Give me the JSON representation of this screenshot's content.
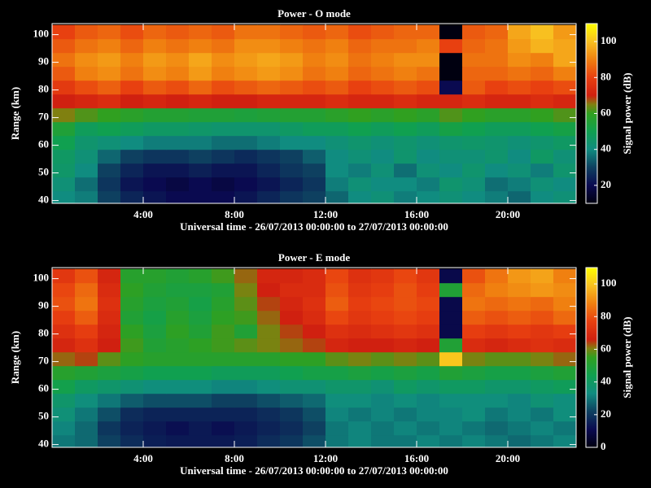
{
  "chart_data": [
    {
      "type": "heatmap",
      "title": "Power - O mode",
      "xlabel": "Universal time - 26/07/2013 00:00:00 to 27/07/2013 00:00:00",
      "ylabel": "Range (km)",
      "colorbar_label": "Signal power (dB)",
      "x": [
        0.5,
        1.5,
        2.5,
        3.5,
        4.5,
        5.5,
        6.5,
        7.5,
        8.5,
        9.5,
        10.5,
        11.5,
        12.5,
        13.5,
        14.5,
        15.5,
        16.5,
        17.5,
        18.5,
        19.5,
        20.5,
        21.5,
        22.5
      ],
      "y": [
        41,
        46,
        51,
        56,
        61,
        66,
        71,
        76,
        81,
        86,
        91,
        96,
        101
      ],
      "z": [
        [
          40,
          38,
          30,
          25,
          22,
          20,
          20,
          20,
          22,
          25,
          28,
          30,
          35,
          40,
          42,
          38,
          40,
          42,
          40,
          38,
          35,
          40,
          42
        ],
        [
          42,
          36,
          28,
          22,
          20,
          18,
          20,
          18,
          20,
          22,
          25,
          28,
          38,
          42,
          40,
          40,
          38,
          44,
          42,
          36,
          38,
          42,
          40
        ],
        [
          45,
          40,
          30,
          25,
          22,
          22,
          24,
          22,
          22,
          25,
          28,
          30,
          40,
          38,
          42,
          36,
          42,
          40,
          44,
          40,
          42,
          38,
          44
        ],
        [
          46,
          42,
          35,
          30,
          28,
          28,
          30,
          28,
          26,
          28,
          30,
          34,
          40,
          42,
          40,
          44,
          40,
          42,
          42,
          44,
          40,
          46,
          42
        ],
        [
          50,
          44,
          42,
          40,
          38,
          38,
          38,
          36,
          36,
          38,
          40,
          40,
          42,
          44,
          42,
          44,
          42,
          44,
          45,
          44,
          42,
          44,
          46
        ],
        [
          55,
          48,
          50,
          48,
          46,
          46,
          45,
          44,
          44,
          44,
          46,
          48,
          48,
          50,
          48,
          50,
          48,
          52,
          50,
          48,
          48,
          50,
          52
        ],
        [
          65,
          62,
          60,
          58,
          56,
          56,
          55,
          55,
          54,
          55,
          56,
          56,
          58,
          60,
          58,
          60,
          58,
          62,
          60,
          58,
          58,
          60,
          62
        ],
        [
          70,
          72,
          74,
          70,
          72,
          70,
          72,
          70,
          70,
          72,
          72,
          72,
          74,
          72,
          72,
          74,
          72,
          72,
          74,
          72,
          72,
          74,
          72
        ],
        [
          78,
          82,
          85,
          80,
          84,
          82,
          86,
          82,
          84,
          86,
          84,
          82,
          84,
          80,
          82,
          84,
          82,
          20,
          84,
          80,
          82,
          80,
          82
        ],
        [
          84,
          90,
          92,
          88,
          92,
          90,
          94,
          90,
          92,
          94,
          92,
          88,
          90,
          86,
          88,
          90,
          88,
          10,
          86,
          86,
          88,
          86,
          90
        ],
        [
          88,
          92,
          94,
          90,
          94,
          92,
          96,
          92,
          94,
          96,
          94,
          90,
          92,
          88,
          90,
          92,
          92,
          10,
          88,
          88,
          92,
          90,
          96
        ],
        [
          84,
          88,
          90,
          86,
          90,
          88,
          90,
          88,
          92,
          92,
          90,
          88,
          90,
          86,
          88,
          88,
          90,
          80,
          86,
          88,
          94,
          98,
          96
        ],
        [
          80,
          84,
          86,
          82,
          86,
          84,
          86,
          84,
          88,
          88,
          86,
          84,
          86,
          82,
          84,
          86,
          86,
          10,
          84,
          86,
          96,
          100,
          94
        ]
      ],
      "xlim": [
        0,
        23
      ],
      "ylim": [
        39,
        104
      ],
      "xticks": [
        {
          "value": 4,
          "label": "4:00"
        },
        {
          "value": 8,
          "label": "8:00"
        },
        {
          "value": 12,
          "label": "12:00"
        },
        {
          "value": 16,
          "label": "16:00"
        },
        {
          "value": 20,
          "label": "20:00"
        }
      ],
      "yticks": [
        40,
        50,
        60,
        70,
        80,
        90,
        100
      ],
      "zlim": [
        10,
        110
      ],
      "zticks": [
        20,
        40,
        60,
        80,
        100
      ],
      "colorscale": [
        [
          0,
          "#000010"
        ],
        [
          0.1,
          "#0a0a50"
        ],
        [
          0.2,
          "#0e4060"
        ],
        [
          0.3,
          "#108c80"
        ],
        [
          0.4,
          "#10a050"
        ],
        [
          0.5,
          "#30a020"
        ],
        [
          0.55,
          "#808010"
        ],
        [
          0.6,
          "#d02010"
        ],
        [
          0.7,
          "#e84010"
        ],
        [
          0.8,
          "#f08010"
        ],
        [
          0.9,
          "#f8c020"
        ],
        [
          1,
          "#ffff00"
        ]
      ]
    },
    {
      "type": "heatmap",
      "title": "Power - E mode",
      "xlabel": "Universal time - 26/07/2013 00:00:00 to 27/07/2013 00:00:00",
      "ylabel": "Range (km)",
      "colorbar_label": "Signal power (dB)",
      "x": [
        0.5,
        1.5,
        2.5,
        3.5,
        4.5,
        5.5,
        6.5,
        7.5,
        8.5,
        9.5,
        10.5,
        11.5,
        12.5,
        13.5,
        14.5,
        15.5,
        16.5,
        17.5,
        18.5,
        19.5,
        20.5,
        21.5,
        22.5
      ],
      "y": [
        41,
        46,
        51,
        56,
        61,
        66,
        71,
        76,
        81,
        86,
        91,
        96,
        101
      ],
      "z": [
        [
          30,
          28,
          22,
          18,
          15,
          14,
          14,
          14,
          15,
          18,
          20,
          24,
          30,
          32,
          30,
          30,
          32,
          30,
          32,
          30,
          28,
          30,
          32
        ],
        [
          32,
          28,
          20,
          16,
          14,
          12,
          14,
          12,
          14,
          16,
          18,
          22,
          30,
          32,
          30,
          32,
          30,
          32,
          30,
          28,
          30,
          32,
          30
        ],
        [
          35,
          30,
          24,
          18,
          16,
          16,
          16,
          16,
          16,
          18,
          20,
          24,
          32,
          30,
          32,
          30,
          32,
          32,
          34,
          30,
          32,
          30,
          34
        ],
        [
          38,
          34,
          30,
          26,
          24,
          24,
          24,
          22,
          22,
          24,
          26,
          28,
          34,
          34,
          32,
          34,
          32,
          34,
          34,
          34,
          32,
          36,
          34
        ],
        [
          45,
          40,
          38,
          36,
          34,
          34,
          34,
          32,
          32,
          34,
          36,
          36,
          38,
          38,
          36,
          40,
          38,
          40,
          40,
          38,
          38,
          40,
          42
        ],
        [
          52,
          50,
          48,
          46,
          44,
          44,
          44,
          42,
          42,
          42,
          44,
          46,
          46,
          48,
          46,
          48,
          46,
          50,
          48,
          46,
          46,
          48,
          50
        ],
        [
          62,
          64,
          58,
          54,
          52,
          52,
          52,
          52,
          52,
          52,
          54,
          54,
          58,
          60,
          58,
          60,
          58,
          100,
          60,
          58,
          58,
          60,
          62
        ],
        [
          68,
          72,
          66,
          56,
          50,
          52,
          54,
          56,
          58,
          60,
          62,
          64,
          68,
          66,
          66,
          68,
          66,
          50,
          70,
          68,
          70,
          72,
          70
        ],
        [
          72,
          76,
          68,
          54,
          48,
          54,
          50,
          56,
          50,
          60,
          64,
          66,
          72,
          70,
          72,
          74,
          72,
          10,
          76,
          74,
          76,
          74,
          76
        ],
        [
          76,
          82,
          70,
          50,
          46,
          52,
          48,
          54,
          56,
          62,
          66,
          70,
          78,
          74,
          76,
          78,
          76,
          10,
          82,
          80,
          82,
          80,
          84
        ],
        [
          80,
          86,
          72,
          52,
          48,
          50,
          46,
          52,
          58,
          64,
          68,
          72,
          82,
          76,
          78,
          80,
          78,
          10,
          86,
          84,
          86,
          84,
          88
        ],
        [
          78,
          84,
          70,
          54,
          50,
          48,
          48,
          50,
          60,
          66,
          70,
          70,
          80,
          74,
          76,
          80,
          76,
          50,
          84,
          88,
          90,
          92,
          90
        ],
        [
          74,
          80,
          68,
          52,
          52,
          50,
          52,
          56,
          62,
          68,
          68,
          70,
          78,
          72,
          74,
          78,
          74,
          10,
          80,
          86,
          92,
          94,
          88
        ]
      ],
      "xlim": [
        0,
        23
      ],
      "ylim": [
        39,
        104
      ],
      "xticks": [
        {
          "value": 4,
          "label": "4:00"
        },
        {
          "value": 8,
          "label": "8:00"
        },
        {
          "value": 12,
          "label": "12:00"
        },
        {
          "value": 16,
          "label": "16:00"
        },
        {
          "value": 20,
          "label": "20:00"
        }
      ],
      "yticks": [
        40,
        50,
        60,
        70,
        80,
        90,
        100
      ],
      "zlim": [
        0,
        110
      ],
      "zticks": [
        0,
        20,
        40,
        60,
        80,
        100
      ],
      "colorscale": [
        [
          0,
          "#000010"
        ],
        [
          0.1,
          "#0a0a50"
        ],
        [
          0.2,
          "#0e4060"
        ],
        [
          0.3,
          "#108c80"
        ],
        [
          0.4,
          "#10a050"
        ],
        [
          0.5,
          "#30a020"
        ],
        [
          0.55,
          "#808010"
        ],
        [
          0.6,
          "#d02010"
        ],
        [
          0.7,
          "#e84010"
        ],
        [
          0.8,
          "#f08010"
        ],
        [
          0.9,
          "#f8c020"
        ],
        [
          1,
          "#ffff00"
        ]
      ]
    }
  ]
}
